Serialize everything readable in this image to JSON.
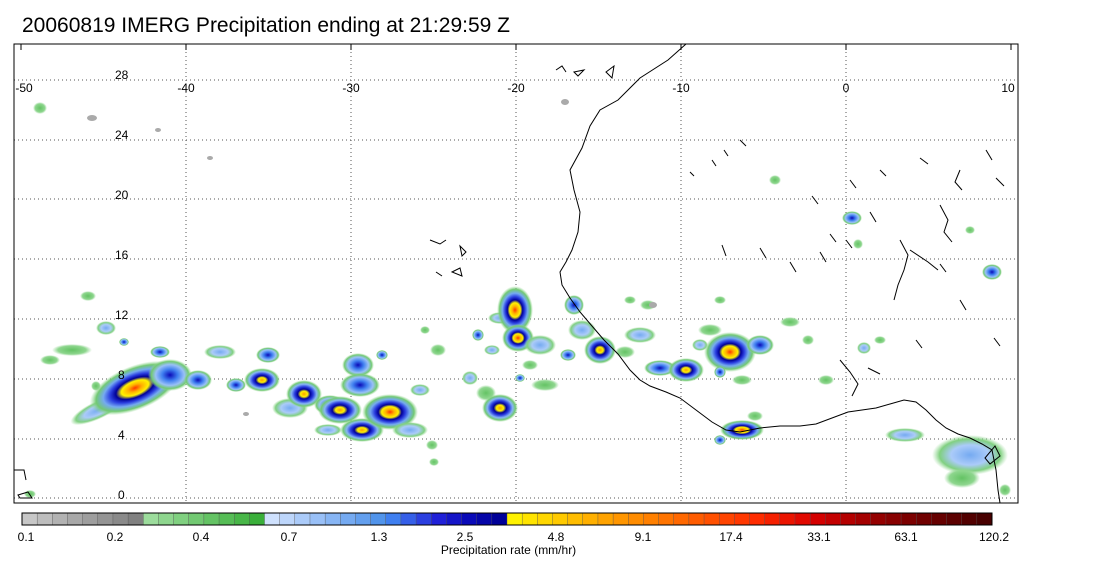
{
  "title": "20060819 IMERG Precipitation ending at 21:29:59 Z",
  "map": {
    "lon_labels": [
      "-50",
      "-40",
      "-30",
      "-20",
      "-10",
      "0",
      "10"
    ],
    "lat_labels": [
      "28",
      "24",
      "20",
      "16",
      "12",
      "8",
      "4",
      "0"
    ],
    "lon_range": [
      -50,
      10
    ],
    "lat_range": [
      -0.5,
      29.5
    ],
    "grid": "dotted",
    "coastline_color": "#000000",
    "rain_cells": [
      {
        "lon": -46.5,
        "lat": 8.6,
        "peak_mm_hr": 17.4
      },
      {
        "lon": -39.5,
        "lat": 8.4,
        "peak_mm_hr": 3.5
      },
      {
        "lon": -34.5,
        "lat": 8.2,
        "peak_mm_hr": 9.1
      },
      {
        "lon": -31.5,
        "lat": 7.4,
        "peak_mm_hr": 9.1
      },
      {
        "lon": -29.5,
        "lat": 6.2,
        "peak_mm_hr": 9.1
      },
      {
        "lon": -27.5,
        "lat": 5.8,
        "peak_mm_hr": 9.1
      },
      {
        "lon": -21.5,
        "lat": 5.8,
        "peak_mm_hr": 3.5
      },
      {
        "lon": -20.2,
        "lat": 12.7,
        "peak_mm_hr": 17.4
      },
      {
        "lon": -19.8,
        "lat": 10.3,
        "peak_mm_hr": 9.1
      },
      {
        "lon": -14.5,
        "lat": 9.8,
        "peak_mm_hr": 9.1
      },
      {
        "lon": -9.5,
        "lat": 8.2,
        "peak_mm_hr": 3.5
      },
      {
        "lon": -7.0,
        "lat": 9.8,
        "peak_mm_hr": 17.4
      },
      {
        "lon": -6.5,
        "lat": 4.4,
        "peak_mm_hr": 17.4
      },
      {
        "lon": -0.2,
        "lat": 18.7,
        "peak_mm_hr": 2.5
      },
      {
        "lon": 8.5,
        "lat": 15.3,
        "peak_mm_hr": 2.5
      },
      {
        "lon": 7.3,
        "lat": 3.2,
        "peak_mm_hr": 2.0
      }
    ]
  },
  "colorbar": {
    "title": "Precipitation rate (mm/hr)",
    "labels": [
      "0.1",
      "0.2",
      "0.4",
      "0.7",
      "1.3",
      "2.5",
      "4.8",
      "9.1",
      "17.4",
      "33.1",
      "63.1",
      "120.2"
    ],
    "colors": [
      "#c7c7c7",
      "#bdbdbd",
      "#b2b2b2",
      "#a8a8a8",
      "#9e9e9e",
      "#949494",
      "#8a8a8a",
      "#808080",
      "#9cdc9c",
      "#8ed68e",
      "#80d080",
      "#72c972",
      "#64c364",
      "#56bd56",
      "#48b648",
      "#3aaf3a",
      "#cfe1fd",
      "#bdd6fb",
      "#abcbf9",
      "#99c0f7",
      "#87b5f4",
      "#75aaf1",
      "#639fee",
      "#5194eb",
      "#3f7ff0",
      "#355fe8",
      "#2b3fe0",
      "#2020d8",
      "#1515c8",
      "#0a0ab8",
      "#0505a8",
      "#000098",
      "#fff200",
      "#ffe400",
      "#ffd700",
      "#ffca00",
      "#ffbd00",
      "#ffb000",
      "#ffa300",
      "#ff9600",
      "#ff8c00",
      "#ff8000",
      "#ff7400",
      "#ff6800",
      "#ff5c00",
      "#ff5000",
      "#ff4400",
      "#ff3800",
      "#ff2c00",
      "#f52000",
      "#eb1400",
      "#e10800",
      "#d40000",
      "#c40000",
      "#b40000",
      "#a40000",
      "#940000",
      "#880000",
      "#7c0000",
      "#700000",
      "#660000",
      "#5c0000",
      "#520000",
      "#480000"
    ]
  }
}
